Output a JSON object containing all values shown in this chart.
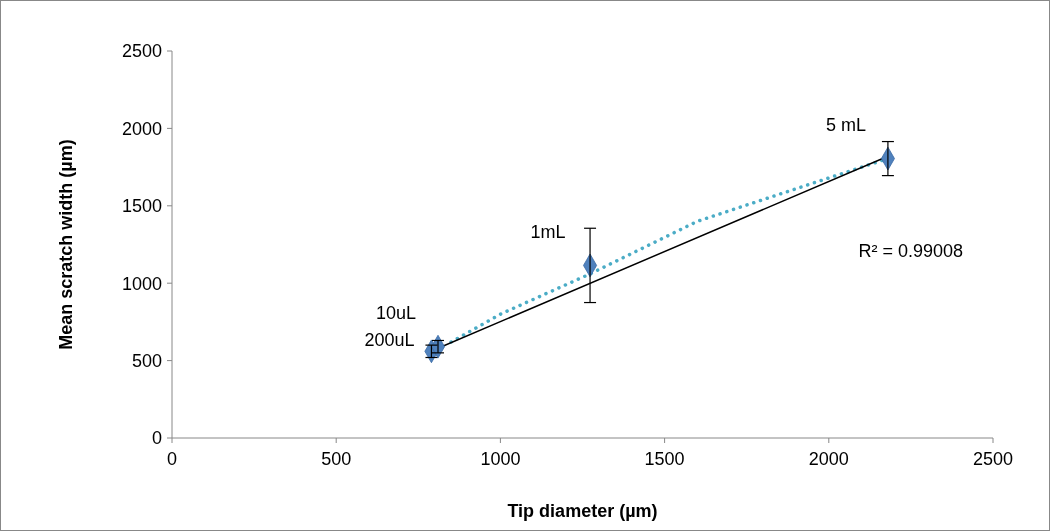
{
  "chart_data": {
    "type": "scatter",
    "xlabel": "Tip diameter (µm)",
    "ylabel": "Mean scratch width (µm)",
    "xlim": [
      0,
      2500
    ],
    "xticks": [
      0,
      500,
      1000,
      1500,
      2000,
      2500
    ],
    "ylim": [
      0,
      2500
    ],
    "yticks": [
      0,
      500,
      1000,
      1500,
      2000,
      2500
    ],
    "grid": false,
    "marker": "diamond",
    "series": [
      {
        "type": "line",
        "color": "#4bacc6",
        "line_style": "dotted",
        "marker": "none",
        "x": [
          850,
          1000,
          1273,
          1600,
          2000,
          2180
        ],
        "values": [
          620,
          800,
          1060,
          1400,
          1680,
          1805
        ]
      },
      {
        "type": "line",
        "color": "#000000",
        "line_style": "solid",
        "marker": "none",
        "x": [
          810,
          2180
        ],
        "values": [
          580,
          1820
        ]
      },
      {
        "color": "#4f81bd",
        "x": [
          790,
          810,
          1273,
          2180
        ],
        "values": [
          560,
          590,
          1115,
          1805
        ],
        "errors": [
          40,
          40,
          240,
          110
        ]
      }
    ],
    "annotations": [
      {
        "text": "10uL",
        "x": 810,
        "y": 590
      },
      {
        "text": "200uL",
        "x": 790,
        "y": 560
      },
      {
        "text": "1mL",
        "x": 1273,
        "y": 1115
      },
      {
        "text": "5 mL",
        "x": 2180,
        "y": 1805
      },
      "R² = 0.99008"
    ]
  }
}
